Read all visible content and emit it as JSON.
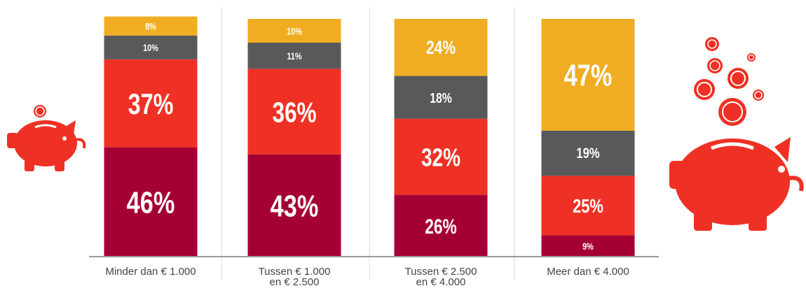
{
  "chart_data": {
    "type": "stacked-bar",
    "categories": [
      "Minder dan € 1.000",
      "Tussen € 1.000\nen € 2.500",
      "Tussen € 2.500\nen € 4.000",
      "Meer dan € 4.000"
    ],
    "series": [
      {
        "color": "#a50034",
        "values": [
          46,
          43,
          26,
          9
        ],
        "value_labels": [
          "46%",
          "43%",
          "26%",
          "9%"
        ]
      },
      {
        "color": "#ee3124",
        "values": [
          37,
          36,
          32,
          25
        ],
        "value_labels": [
          "37%",
          "36%",
          "32%",
          "25%"
        ]
      },
      {
        "color": "#58595b",
        "values": [
          10,
          11,
          18,
          19
        ],
        "value_labels": [
          "10%",
          "11%",
          "18%",
          "19%"
        ]
      },
      {
        "color": "#f0ad24",
        "values": [
          8,
          10,
          24,
          47
        ],
        "value_labels": [
          "8%",
          "10%",
          "24%",
          "47%"
        ]
      }
    ],
    "ylim": [
      0,
      100
    ]
  }
}
